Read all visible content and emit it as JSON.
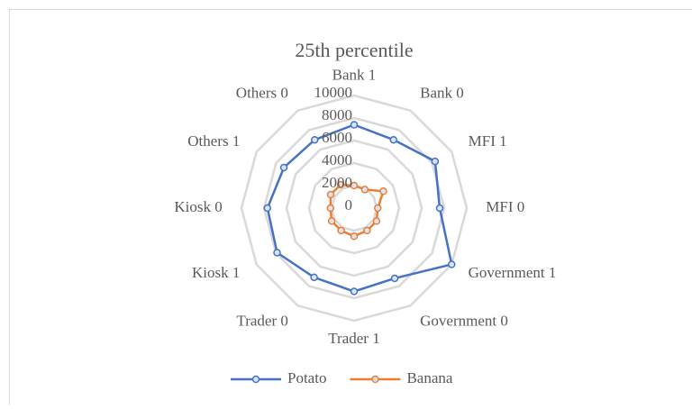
{
  "chart_data": {
    "type": "radar",
    "title": "25th percentile",
    "categories": [
      "Bank 1",
      "Bank 0",
      "MFI 1",
      "MFI 0",
      "Government 1",
      "Government 0",
      "Trader 1",
      "Trader 0",
      "Kiosk 1",
      "Kiosk 0",
      "Others 1",
      "Others 0"
    ],
    "series": [
      {
        "name": "Potato",
        "color": "#4472c4",
        "values": [
          7400,
          7000,
          8300,
          7600,
          10000,
          7200,
          7400,
          7100,
          7900,
          7700,
          7200,
          7000
        ]
      },
      {
        "name": "Banana",
        "color": "#ed7d31",
        "values": [
          2000,
          1900,
          3000,
          2100,
          2300,
          2300,
          2500,
          2300,
          2300,
          2100,
          2400,
          2400
        ]
      }
    ],
    "ylim": [
      0,
      10000
    ],
    "yticks": [
      0,
      2000,
      4000,
      6000,
      8000,
      10000
    ],
    "grid": true,
    "legend": "bottom"
  }
}
